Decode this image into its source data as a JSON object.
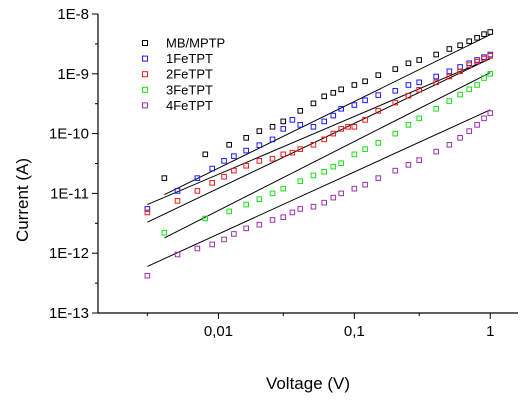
{
  "chart_data": {
    "type": "scatter",
    "xscale": "log",
    "yscale": "log",
    "xlim": [
      0.0013,
      1.6
    ],
    "ylim": [
      1e-13,
      1e-08
    ],
    "xlabel": "Voltage (V)",
    "ylabel": "Current (A)",
    "xticks": [
      {
        "value": 0.01,
        "label": "0,01"
      },
      {
        "value": 0.1,
        "label": "0,1"
      },
      {
        "value": 1,
        "label": "1"
      }
    ],
    "yticks": [
      {
        "value": 1e-13,
        "label": "1E-13"
      },
      {
        "value": 1e-12,
        "label": "1E-12"
      },
      {
        "value": 1e-11,
        "label": "1E-11"
      },
      {
        "value": 1e-10,
        "label": "1E-10"
      },
      {
        "value": 1e-09,
        "label": "1E-9"
      },
      {
        "value": 1e-08,
        "label": "1E-8"
      }
    ],
    "grid": false,
    "legend_position": "top-left",
    "marker": "open-square",
    "series": [
      {
        "name": "MB/MPTP",
        "color": "#000000",
        "fit": {
          "x": [
            0.004,
            1.0
          ],
          "y": [
            9.5e-12,
            4.5e-09
          ]
        },
        "x": [
          0.004,
          0.008,
          0.012,
          0.016,
          0.02,
          0.025,
          0.03,
          0.04,
          0.05,
          0.06,
          0.07,
          0.08,
          0.1,
          0.12,
          0.15,
          0.2,
          0.25,
          0.3,
          0.4,
          0.5,
          0.6,
          0.7,
          0.8,
          0.9,
          1.0
        ],
        "y": [
          1.8e-11,
          4.5e-11,
          6.5e-11,
          8.5e-11,
          1.1e-10,
          1.3e-10,
          1.6e-10,
          2.4e-10,
          3.2e-10,
          4.2e-10,
          4.8e-10,
          5.5e-10,
          6.5e-10,
          7.5e-10,
          9.5e-10,
          1.2e-09,
          1.5e-09,
          1.7e-09,
          2.1e-09,
          2.6e-09,
          3e-09,
          3.5e-09,
          4e-09,
          4.6e-09,
          5e-09
        ]
      },
      {
        "name": "1FeTPT",
        "color": "#1a1aff",
        "fit": {
          "x": [
            0.003,
            1.0
          ],
          "y": [
            6.5e-12,
            1.8e-09
          ]
        },
        "x": [
          0.003,
          0.005,
          0.007,
          0.009,
          0.011,
          0.013,
          0.016,
          0.02,
          0.025,
          0.03,
          0.035,
          0.04,
          0.05,
          0.06,
          0.07,
          0.08,
          0.1,
          0.12,
          0.15,
          0.2,
          0.25,
          0.3,
          0.4,
          0.5,
          0.6,
          0.7,
          0.8,
          0.9,
          1.0
        ],
        "y": [
          5.5e-12,
          1.1e-11,
          1.8e-11,
          2.6e-11,
          3.5e-11,
          4.2e-11,
          5.2e-11,
          6.4e-11,
          8e-11,
          1.2e-10,
          1.7e-10,
          1.4e-10,
          1.3e-10,
          1.6e-10,
          2e-10,
          2.6e-10,
          3e-10,
          3.6e-10,
          4.4e-10,
          5.2e-10,
          6.5e-10,
          7.2e-10,
          9e-10,
          1.1e-09,
          1.3e-09,
          1.5e-09,
          1.7e-09,
          1.9e-09,
          2.1e-09
        ]
      },
      {
        "name": "2FeTPT",
        "color": "#ee1a1a",
        "fit": {
          "x": [
            0.003,
            1.0
          ],
          "y": [
            3.3e-12,
            1.8e-09
          ]
        },
        "x": [
          0.003,
          0.005,
          0.007,
          0.009,
          0.011,
          0.013,
          0.016,
          0.02,
          0.025,
          0.03,
          0.035,
          0.04,
          0.05,
          0.06,
          0.07,
          0.08,
          0.09,
          0.1,
          0.12,
          0.15,
          0.2,
          0.25,
          0.3,
          0.4,
          0.5,
          0.6,
          0.7,
          0.8,
          0.9,
          1.0
        ],
        "y": [
          4.8e-12,
          7.5e-12,
          1.1e-11,
          1.5e-11,
          1.9e-11,
          2.4e-11,
          2.9e-11,
          3.5e-11,
          3.8e-11,
          4.5e-11,
          4.8e-11,
          5.5e-11,
          6.5e-11,
          8e-11,
          1e-10,
          1.2e-10,
          1.3e-10,
          1.3e-10,
          1.7e-10,
          2.4e-10,
          3.3e-10,
          4.3e-10,
          5.4e-10,
          7.2e-10,
          9e-10,
          1.1e-09,
          1.4e-09,
          1.6e-09,
          1.8e-09,
          2e-09
        ]
      },
      {
        "name": "3FeTPT",
        "color": "#1ae01a",
        "fit": {
          "x": [
            0.004,
            1.0
          ],
          "y": [
            1.8e-12,
            1.05e-09
          ]
        },
        "x": [
          0.004,
          0.008,
          0.012,
          0.016,
          0.02,
          0.025,
          0.03,
          0.04,
          0.05,
          0.06,
          0.07,
          0.08,
          0.1,
          0.12,
          0.15,
          0.2,
          0.25,
          0.3,
          0.4,
          0.5,
          0.6,
          0.7,
          0.8,
          0.9,
          1.0
        ],
        "y": [
          2.2e-12,
          3.8e-12,
          5e-12,
          6.5e-12,
          8e-12,
          1e-11,
          1.2e-11,
          1.6e-11,
          2e-11,
          2.3e-11,
          2.8e-11,
          3.2e-11,
          4.5e-11,
          5.5e-11,
          7e-11,
          1e-10,
          1.4e-10,
          1.8e-10,
          2.6e-10,
          3.5e-10,
          4.5e-10,
          5.5e-10,
          6.5e-10,
          8.5e-10,
          1e-09
        ]
      },
      {
        "name": "4FeTPT",
        "color": "#9933aa",
        "fit": {
          "x": [
            0.003,
            1.0
          ],
          "y": [
            6e-13,
            2.5e-10
          ]
        },
        "x": [
          0.003,
          0.005,
          0.007,
          0.009,
          0.011,
          0.013,
          0.016,
          0.02,
          0.025,
          0.03,
          0.035,
          0.04,
          0.05,
          0.06,
          0.07,
          0.08,
          0.1,
          0.12,
          0.15,
          0.2,
          0.25,
          0.3,
          0.4,
          0.5,
          0.6,
          0.7,
          0.8,
          0.9,
          1.0
        ],
        "y": [
          4.2e-13,
          9.5e-13,
          1.2e-12,
          1.4e-12,
          1.7e-12,
          2.1e-12,
          2.6e-12,
          3e-12,
          3.6e-12,
          4e-12,
          4.8e-12,
          5.5e-12,
          6e-12,
          7e-12,
          8.5e-12,
          1e-11,
          1.2e-11,
          1.4e-11,
          1.8e-11,
          2.4e-11,
          3e-11,
          3.6e-11,
          5e-11,
          6.5e-11,
          8.5e-11,
          1.1e-10,
          1.4e-10,
          1.8e-10,
          2.2e-10
        ]
      }
    ]
  }
}
